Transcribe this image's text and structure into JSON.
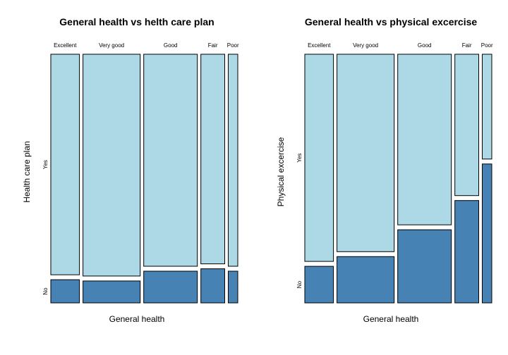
{
  "chart_data": [
    {
      "type": "mosaic",
      "title": "General health vs helth care plan",
      "xlabel": "General health",
      "ylabel": "Health care plan",
      "categories": [
        "Excellent",
        "Very good",
        "Good",
        "Fair",
        "Poor"
      ],
      "column_widths": [
        0.12,
        0.24,
        0.225,
        0.1,
        0.04
      ],
      "levels": [
        "Yes",
        "No"
      ],
      "proportions": {
        "No": [
          0.095,
          0.09,
          0.13,
          0.14,
          0.13
        ],
        "Yes": [
          0.905,
          0.91,
          0.87,
          0.86,
          0.87
        ]
      },
      "colors": {
        "Yes": "#add8e6",
        "No": "#4682b4"
      }
    },
    {
      "type": "mosaic",
      "title": "General health vs physical excercise",
      "xlabel": "General health",
      "ylabel": "Physical excercise",
      "categories": [
        "Excellent",
        "Very good",
        "Good",
        "Fair",
        "Poor"
      ],
      "column_widths": [
        0.12,
        0.24,
        0.225,
        0.1,
        0.04
      ],
      "levels": [
        "Yes",
        "No"
      ],
      "proportions": {
        "No": [
          0.15,
          0.19,
          0.3,
          0.42,
          0.57
        ],
        "Yes": [
          0.85,
          0.81,
          0.7,
          0.58,
          0.43
        ]
      },
      "colors": {
        "Yes": "#add8e6",
        "No": "#4682b4"
      }
    }
  ]
}
